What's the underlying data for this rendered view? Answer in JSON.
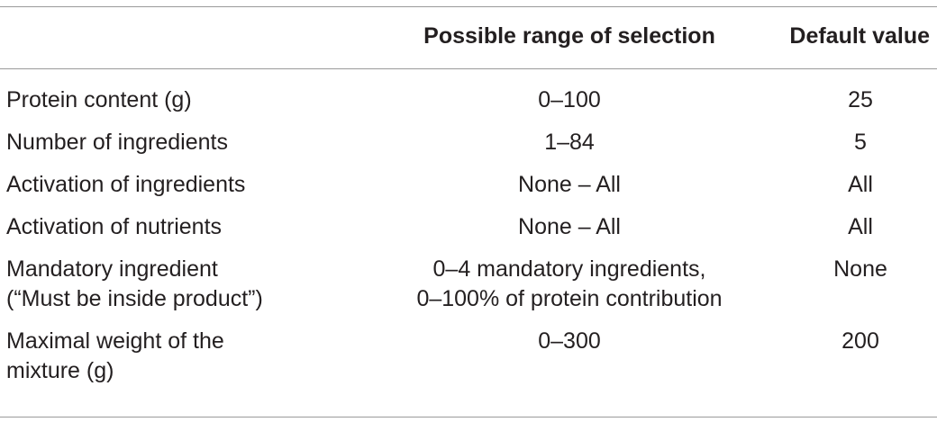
{
  "table": {
    "headers": [
      "",
      "Possible range of selection",
      "Default value"
    ],
    "rows": [
      {
        "parameter": "Protein content (g)",
        "range": "0–100",
        "default": "25"
      },
      {
        "parameter": "Number of ingredients",
        "range": "1–84",
        "default": "5"
      },
      {
        "parameter": "Activation of ingredients",
        "range": "None – All",
        "default": "All"
      },
      {
        "parameter": "Activation of nutrients",
        "range": "None – All",
        "default": "All"
      },
      {
        "parameter": "Mandatory ingredient\n(“Must be inside product”)",
        "range": "0–4 mandatory ingredients,\n0–100% of protein contribution",
        "default": "None"
      },
      {
        "parameter": "Maximal weight of the\nmixture (g)",
        "range": "0–300",
        "default": "200"
      }
    ]
  }
}
